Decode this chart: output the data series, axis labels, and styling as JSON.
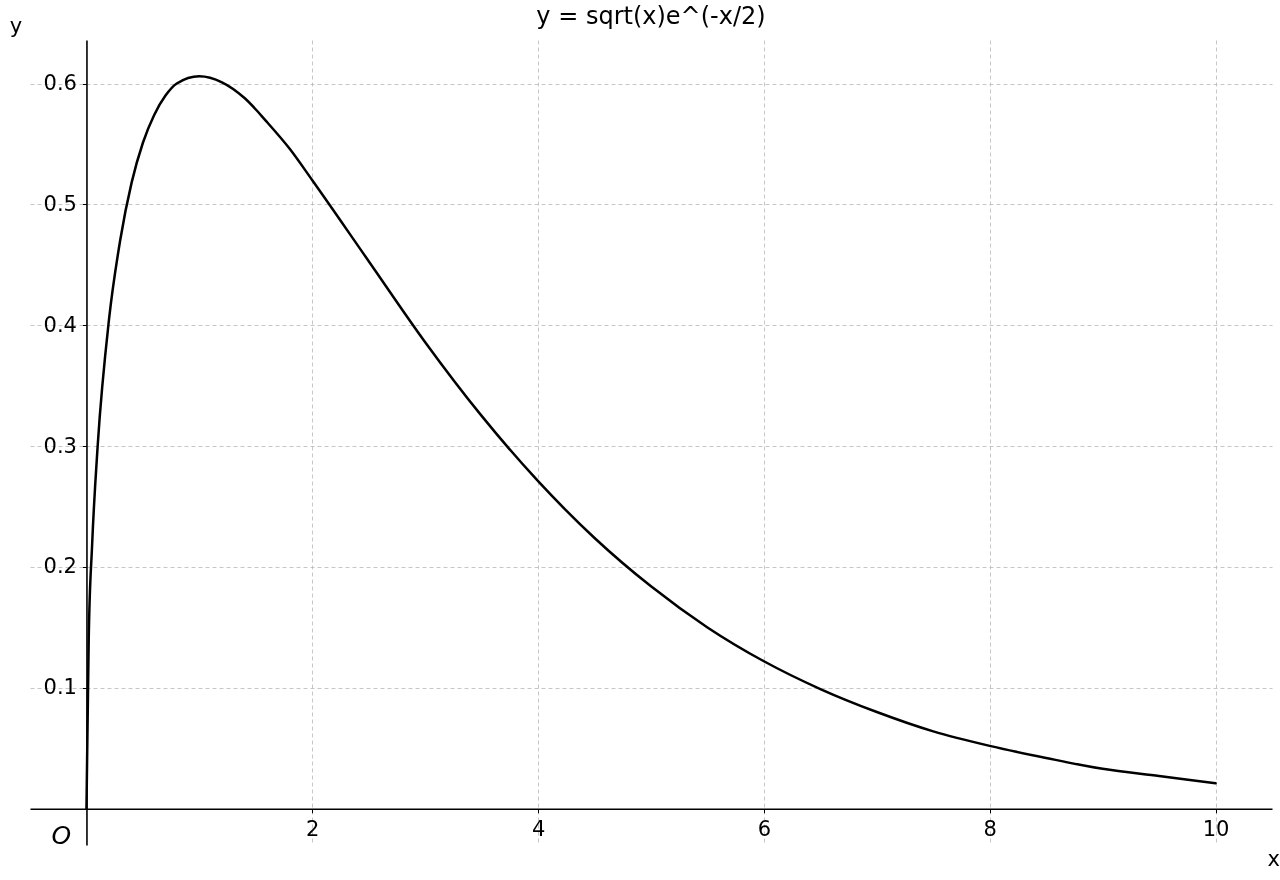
{
  "chart_data": {
    "type": "line",
    "title": "y = sqrt(x)e^(-x/2)",
    "xlabel": "x",
    "ylabel": "y",
    "x": [
      0,
      0.02,
      0.05,
      0.1,
      0.2,
      0.3,
      0.4,
      0.5,
      0.6,
      0.7,
      0.8,
      1.0,
      1.2,
      1.4,
      1.6,
      1.8,
      2.0,
      2.5,
      3.0,
      3.5,
      4.0,
      4.5,
      5.0,
      5.5,
      6.0,
      6.5,
      7.0,
      7.5,
      8.0,
      8.5,
      9.0,
      9.5,
      10.0
    ],
    "series": [
      {
        "color": "#000000",
        "values": [
          0,
          0.14,
          0.218,
          0.301,
          0.405,
          0.471,
          0.518,
          0.551,
          0.574,
          0.59,
          0.6,
          0.606,
          0.601,
          0.588,
          0.568,
          0.546,
          0.52,
          0.453,
          0.386,
          0.325,
          0.271,
          0.224,
          0.184,
          0.15,
          0.122,
          0.099,
          0.08,
          0.064,
          0.052,
          0.042,
          0.033,
          0.027,
          0.021
        ]
      }
    ],
    "xlim": [
      -0.5,
      10.5
    ],
    "ylim": [
      -0.03,
      0.636
    ],
    "xticks": [
      2,
      4,
      6,
      8,
      10
    ],
    "yticks": [
      0.1,
      0.2,
      0.3,
      0.4,
      0.5,
      0.6
    ],
    "grid": true,
    "annotations": [
      {
        "text": "O",
        "x": 0,
        "y": 0
      }
    ]
  }
}
